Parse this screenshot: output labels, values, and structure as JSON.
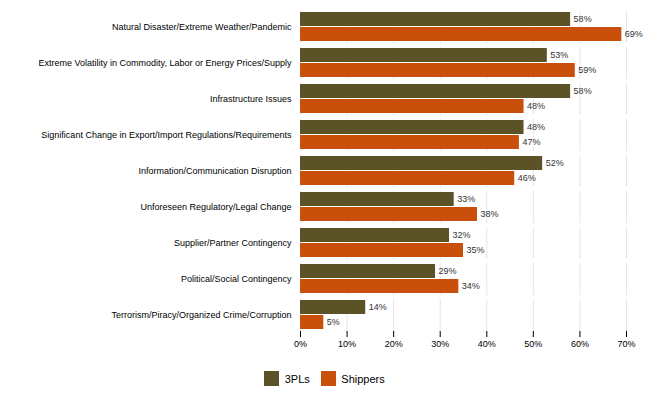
{
  "chart_data": {
    "type": "bar",
    "orientation": "horizontal",
    "categories": [
      "Natural Disaster/Extreme Weather/Pandemic",
      "Extreme Volatility in Commodity, Labor or Energy Prices/Supply",
      "Infrastructure Issues",
      "Significant Change in Export/Import Regulations/Requirements",
      "Information/Communication Disruption",
      "Unforeseen Regulatory/Legal Change",
      "Supplier/Partner Contingency",
      "Political/Social Contingency",
      "Terrorism/Piracy/Organized Crime/Corruption"
    ],
    "series": [
      {
        "name": "3PLs",
        "color": "#5c5227",
        "values": [
          58,
          53,
          58,
          48,
          52,
          33,
          32,
          29,
          14
        ],
        "value_labels": [
          "58%",
          "53%",
          "58%",
          "48%",
          "52%",
          "33%",
          "32%",
          "29%",
          "14%"
        ]
      },
      {
        "name": "Shippers",
        "color": "#c8500a",
        "values": [
          69,
          59,
          48,
          47,
          46,
          38,
          35,
          34,
          5
        ],
        "value_labels": [
          "69%",
          "59%",
          "48%",
          "47%",
          "46%",
          "38%",
          "35%",
          "34%",
          "5%"
        ]
      }
    ],
    "xlim": [
      0,
      70
    ],
    "xticks": [
      {
        "value": 0,
        "label": "0%"
      },
      {
        "value": 10,
        "label": "10%"
      },
      {
        "value": 20,
        "label": "20%"
      },
      {
        "value": 30,
        "label": "30%"
      },
      {
        "value": 40,
        "label": "40%"
      },
      {
        "value": 50,
        "label": "50%"
      },
      {
        "value": 60,
        "label": "60%"
      },
      {
        "value": 70,
        "label": "70%"
      }
    ],
    "grid": true,
    "data_labels": true,
    "legend": "bottom"
  }
}
